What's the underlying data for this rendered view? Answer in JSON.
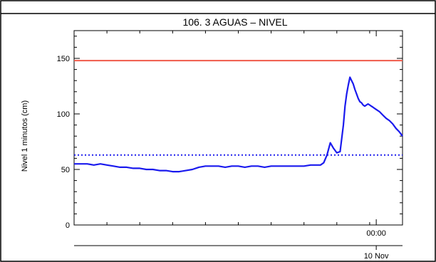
{
  "chart_data": {
    "type": "line",
    "title": "106. 3 AGUAS – NIVEL",
    "ylabel": "Nivel 1 minutos (cm)",
    "xlabel": "",
    "ylim": [
      0,
      175
    ],
    "xlim": [
      0,
      100
    ],
    "y_ticks": [
      0,
      50,
      100,
      150
    ],
    "x_tick_labels": [
      {
        "x": 92.0,
        "label": "00:00"
      }
    ],
    "date_labels": [
      {
        "x": 92.0,
        "label": "10 Nov"
      }
    ],
    "grid": false,
    "colors": {
      "series": "#1a1aee",
      "threshold_high": "#f05a4a",
      "threshold_low": "#2020ee",
      "axes": "#000000"
    },
    "thresholds": [
      {
        "value": 148,
        "style": "solid",
        "color_key": "threshold_high"
      },
      {
        "value": 63,
        "style": "dotted",
        "color_key": "threshold_low"
      }
    ],
    "series": [
      {
        "x": [
          0,
          2,
          4,
          6,
          8,
          10,
          12,
          14,
          16,
          18,
          20,
          22,
          24,
          26,
          28,
          30,
          32,
          34,
          36,
          38,
          40,
          42,
          44,
          46,
          48,
          50,
          52,
          54,
          56,
          58,
          60,
          62,
          64,
          66,
          68,
          70,
          72,
          74,
          75,
          76,
          77,
          78,
          79,
          80,
          81,
          82,
          82.5,
          83,
          83.5,
          84,
          84.5,
          85,
          85.5,
          86,
          86.5,
          87,
          87.5,
          88,
          88.5,
          89,
          89.5,
          90,
          90.5,
          91,
          92,
          93,
          94,
          95,
          96,
          97,
          98,
          99,
          100
        ],
        "values": [
          55,
          55,
          55,
          54,
          55,
          54,
          53,
          52,
          52,
          51,
          51,
          50,
          50,
          49,
          49,
          48,
          48,
          49,
          50,
          52,
          53,
          53,
          53,
          52,
          53,
          53,
          52,
          53,
          53,
          52,
          53,
          53,
          53,
          53,
          53,
          53,
          54,
          54,
          54,
          56,
          63,
          74,
          69,
          65,
          66,
          90,
          107,
          118,
          126,
          133,
          130,
          127,
          122,
          118,
          114,
          111,
          110,
          108,
          107,
          108,
          109,
          108,
          107,
          106,
          104,
          102,
          99,
          96,
          94,
          91,
          87,
          84,
          80
        ]
      }
    ]
  }
}
